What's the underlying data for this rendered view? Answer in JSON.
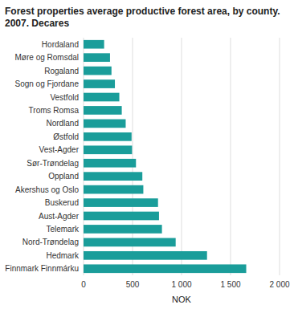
{
  "chart_data": {
    "type": "bar",
    "orientation": "horizontal",
    "title": "Forest properties average productive forest area, by county.\n2007. Decares",
    "x_label": "NOK",
    "categories": [
      "Hordaland",
      "Møre og Romsdal",
      "Rogaland",
      "Sogn og Fjordane",
      "Vestfold",
      "Troms Romsa",
      "Nordland",
      "Østfold",
      "Vest-Agder",
      "Sør-Trøndelag",
      "Oppland",
      "Akershus og Oslo",
      "Buskerud",
      "Aust-Agder",
      "Telemark",
      "Nord-Trøndelag",
      "Hedmark",
      "Finnmark Finnmárku"
    ],
    "values": [
      210,
      270,
      285,
      320,
      365,
      390,
      430,
      490,
      495,
      535,
      600,
      610,
      760,
      770,
      800,
      940,
      1260,
      1660
    ],
    "color": "#1a9d9a",
    "xlim": [
      0,
      2000
    ],
    "xticks": [
      0,
      500,
      {
        "value": 1000,
        "label": "1 000"
      },
      {
        "value": 1500,
        "label": "1 500"
      },
      {
        "value": 2000,
        "label": "2 000"
      }
    ],
    "grid": true
  }
}
